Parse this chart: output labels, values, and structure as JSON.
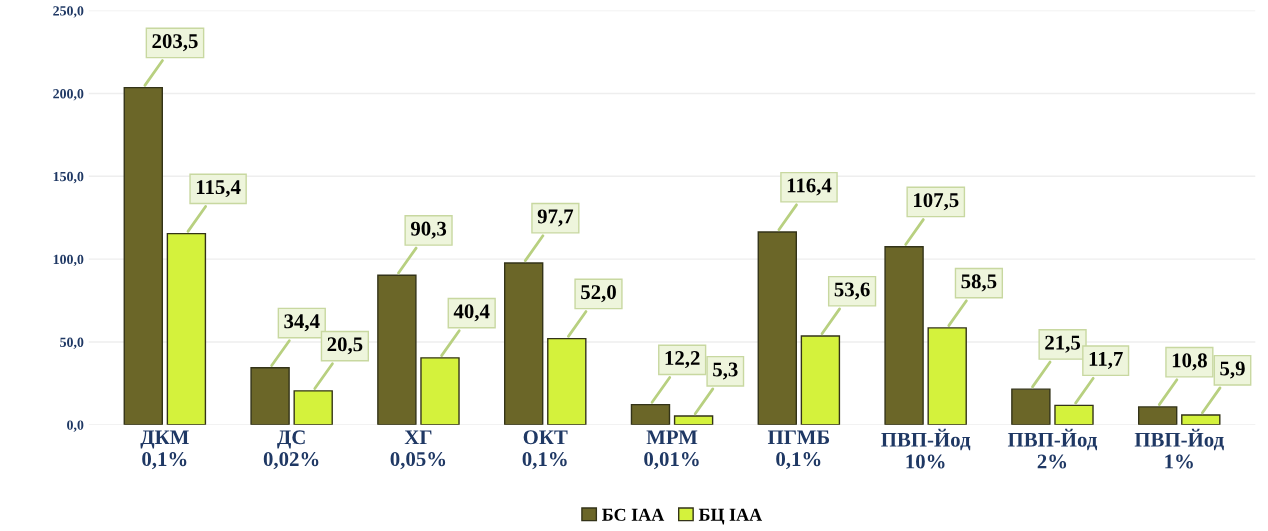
{
  "chart_data": {
    "type": "bar",
    "categories": [
      "ДКМ\n0,1%",
      "ДС\n0,02%",
      "ХГ\n0,05%",
      "ОКТ\n0,1%",
      "МРМ\n0,01%",
      "ПГМБ\n0,1%",
      "ПВП-Йод\n10%",
      "ПВП-Йод\n2%",
      "ПВП-Йод\n1%"
    ],
    "series": [
      {
        "name": "БС IAA",
        "color": "#6b6628",
        "values": [
          203.5,
          34.4,
          90.3,
          97.7,
          12.2,
          116.4,
          107.5,
          21.5,
          10.8
        ],
        "value_labels": [
          "203,5",
          "34,4",
          "90,3",
          "97,7",
          "12,2",
          "116,4",
          "107,5",
          "21,5",
          "10,8"
        ]
      },
      {
        "name": "БЦ IAA",
        "color": "#d4f23c",
        "values": [
          115.4,
          20.5,
          40.4,
          52.0,
          5.3,
          53.6,
          58.5,
          11.7,
          5.9
        ],
        "value_labels": [
          "115,4",
          "20,5",
          "40,4",
          "52,0",
          "5,3",
          "53,6",
          "58,5",
          "11,7",
          "5,9"
        ]
      }
    ],
    "ylim": [
      0,
      250
    ],
    "yticks": [
      {
        "value": 0,
        "label": "0,0"
      },
      {
        "value": 50,
        "label": "50,0"
      },
      {
        "value": 100,
        "label": "100,0"
      },
      {
        "value": 150,
        "label": "150,0"
      },
      {
        "value": 200,
        "label": "200,0"
      },
      {
        "value": 250,
        "label": "250,0"
      }
    ],
    "grid": "y",
    "legend": "bottom"
  }
}
